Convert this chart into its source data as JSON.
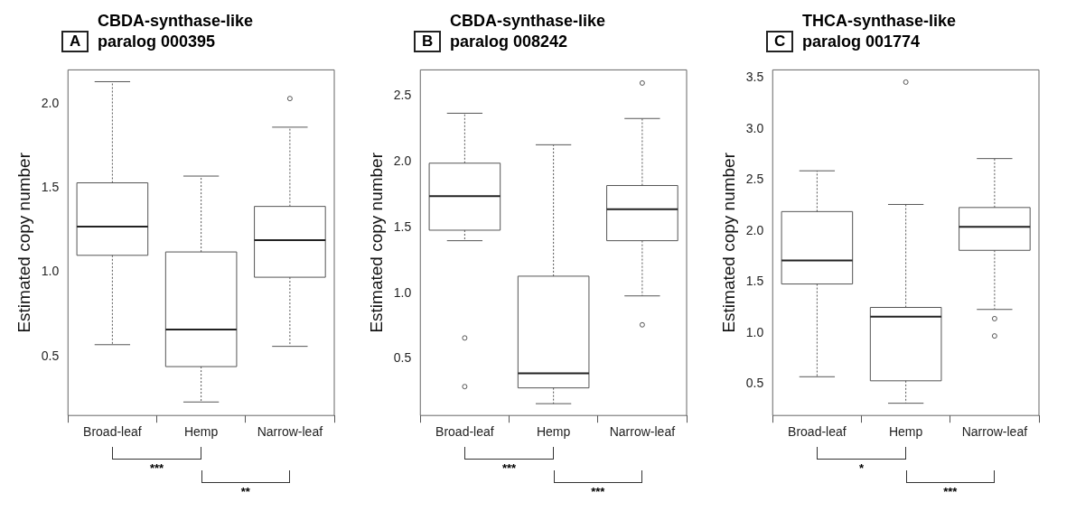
{
  "chart_data": [
    {
      "type": "box",
      "title": "CBDA-synthase-like\nparalog 000395",
      "ylabel": "Estimated copy number",
      "categories": [
        "Broad-leaf",
        "Hemp",
        "Narrow-leaf"
      ],
      "ylim": [
        0.15,
        2.2
      ],
      "yticks": [
        0.5,
        {
          "value": 1,
          "label": "1.0"
        },
        1.5,
        {
          "value": 2,
          "label": "2.0"
        }
      ],
      "grid": false,
      "annotations": [
        "A",
        "***",
        "**"
      ],
      "boxes": [
        {
          "low": 0.57,
          "q1": 1.1,
          "median": 1.27,
          "q3": 1.53,
          "high": 2.13
        },
        {
          "low": 0.23,
          "q1": 0.44,
          "median": 0.66,
          "q3": 1.12,
          "high": 1.57
        },
        {
          "low": 0.56,
          "q1": 0.97,
          "median": 1.19,
          "q3": 1.39,
          "high": 1.86,
          "outliers": [
            2.03
          ]
        }
      ]
    },
    {
      "type": "box",
      "title": "CBDA-synthase-like\nparalog 008242",
      "ylabel": "Estimated copy number",
      "categories": [
        "Broad-leaf",
        "Hemp",
        "Narrow-leaf"
      ],
      "ylim": [
        0.07,
        2.7
      ],
      "yticks": [
        0.5,
        {
          "value": 1,
          "label": "1.0"
        },
        1.5,
        {
          "value": 2,
          "label": "2.0"
        },
        2.5
      ],
      "grid": false,
      "annotations": [
        "B",
        "***",
        "***"
      ],
      "boxes": [
        {
          "low": 1.4,
          "q1": 1.48,
          "median": 1.74,
          "q3": 1.99,
          "high": 2.37,
          "outliers": [
            0.66,
            0.29
          ]
        },
        {
          "low": 0.16,
          "q1": 0.28,
          "median": 0.39,
          "q3": 1.13,
          "high": 2.13
        },
        {
          "low": 0.98,
          "q1": 1.4,
          "median": 1.64,
          "q3": 1.82,
          "high": 2.33,
          "outliers": [
            2.6,
            0.76
          ]
        }
      ]
    },
    {
      "type": "box",
      "title": "THCA-synthase-like\nparalog 001774",
      "ylabel": "Estimated copy number",
      "categories": [
        "Broad-leaf",
        "Hemp",
        "Narrow-leaf"
      ],
      "ylim": [
        0.19,
        3.58
      ],
      "yticks": [
        0.5,
        {
          "value": 1,
          "label": "1.0"
        },
        1.5,
        {
          "value": 2,
          "label": "2.0"
        },
        2.5,
        {
          "value": 3,
          "label": "3.0"
        },
        3.5
      ],
      "grid": false,
      "annotations": [
        "C",
        "*",
        "***"
      ],
      "boxes": [
        {
          "low": 0.57,
          "q1": 1.48,
          "median": 1.71,
          "q3": 2.19,
          "high": 2.59
        },
        {
          "low": 0.31,
          "q1": 0.53,
          "median": 1.16,
          "q3": 1.25,
          "high": 2.26,
          "outliers": [
            3.46
          ]
        },
        {
          "low": 1.23,
          "q1": 1.81,
          "median": 2.04,
          "q3": 2.23,
          "high": 2.71,
          "outliers": [
            1.14,
            0.97
          ]
        }
      ]
    }
  ]
}
